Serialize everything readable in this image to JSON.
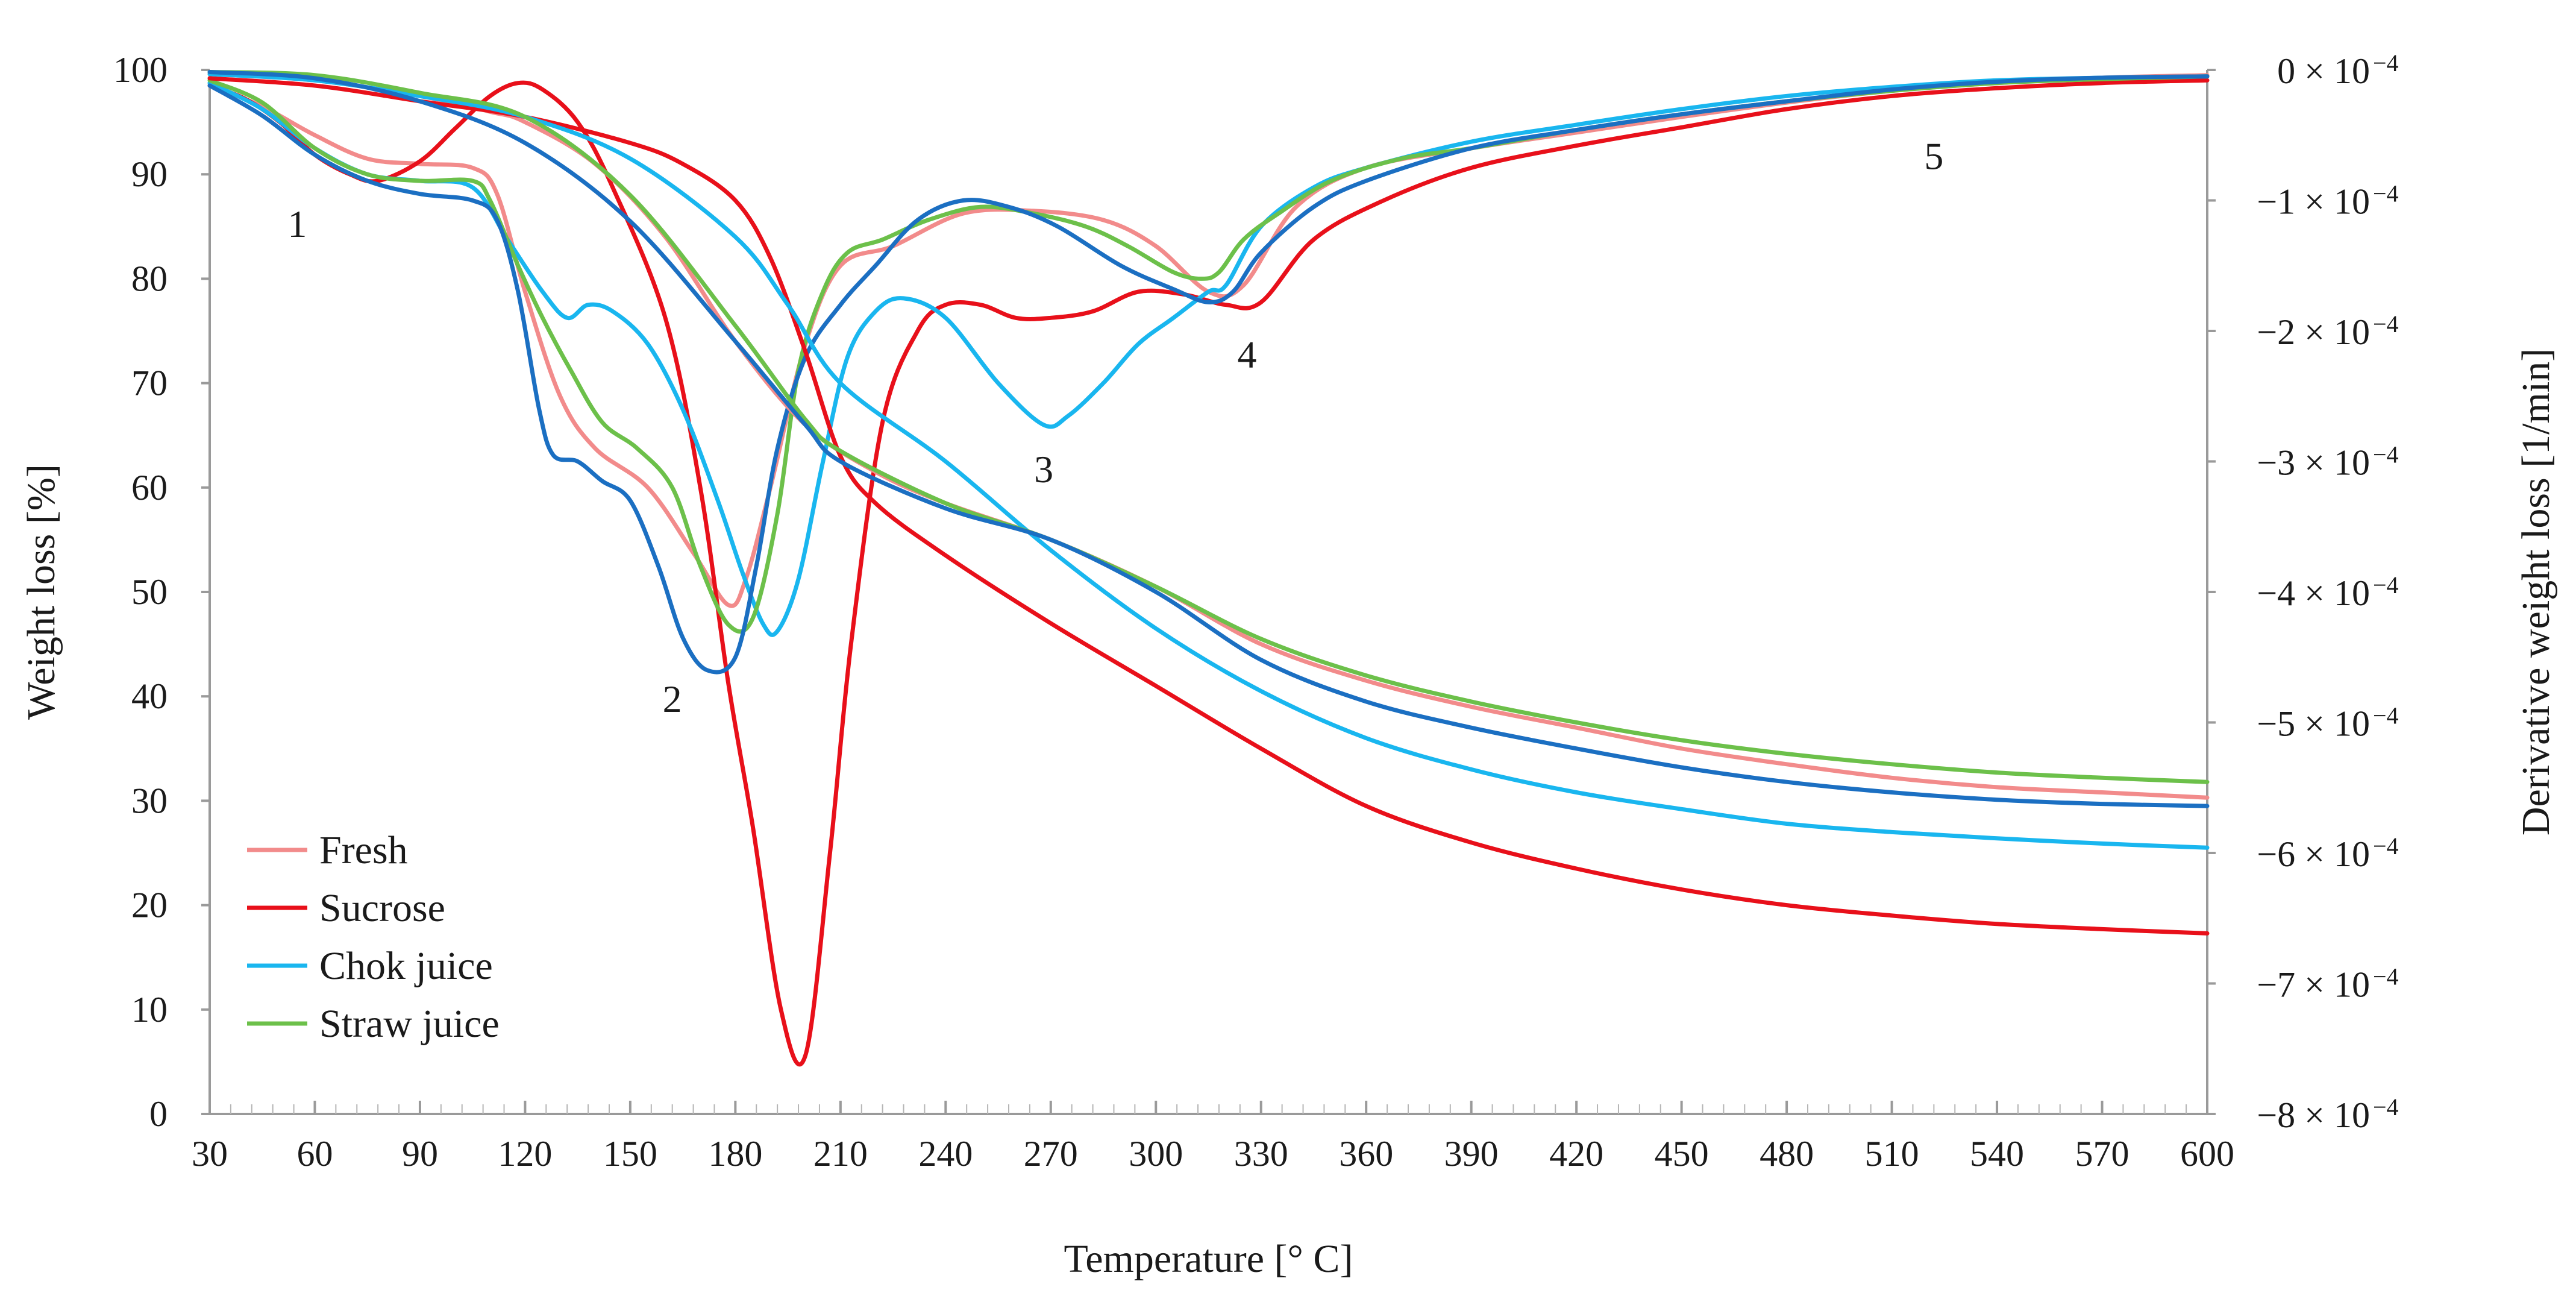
{
  "chart_data": {
    "type": "line",
    "title": "",
    "xlabel": "Temperature [° C]",
    "ylabel_left": "Weight loss [%]",
    "ylabel_right": "Derivative weight loss [1/min]",
    "xlim": [
      30,
      600
    ],
    "ylim_left": [
      0,
      100
    ],
    "ylim_right": [
      -0.0008,
      0
    ],
    "grid": false,
    "legend_position": "bottom-left",
    "x_ticks": [
      30,
      60,
      90,
      120,
      150,
      180,
      210,
      240,
      270,
      300,
      330,
      360,
      390,
      420,
      450,
      480,
      510,
      540,
      570,
      600
    ],
    "y_left_ticks": [
      0,
      10,
      20,
      30,
      40,
      50,
      60,
      70,
      80,
      90,
      100
    ],
    "y_right_ticks": [
      {
        "value": 0,
        "mantissa": "0",
        "text": "0 × 10",
        "exp": "−4"
      },
      {
        "value": -0.0001,
        "mantissa": "−1",
        "text": "−1 × 10",
        "exp": "−4"
      },
      {
        "value": -0.0002,
        "mantissa": "−2",
        "text": "−2 × 10",
        "exp": "−4"
      },
      {
        "value": -0.0003,
        "mantissa": "−3",
        "text": "−3 × 10",
        "exp": "−4"
      },
      {
        "value": -0.0004,
        "mantissa": "−4",
        "text": "−4 × 10",
        "exp": "−4"
      },
      {
        "value": -0.0005,
        "mantissa": "−5",
        "text": "−5 × 10",
        "exp": "−4"
      },
      {
        "value": -0.0006,
        "mantissa": "−6",
        "text": "−6 × 10",
        "exp": "−4"
      },
      {
        "value": -0.0007,
        "mantissa": "−7",
        "text": "−7 × 10",
        "exp": "−4"
      },
      {
        "value": -0.0008,
        "mantissa": "−8",
        "text": "−8 × 10",
        "exp": "−4"
      }
    ],
    "legend": [
      {
        "name": "Fresh",
        "color": "#f28b8b"
      },
      {
        "name": "Sucrose",
        "color": "#e8101a"
      },
      {
        "name": "Chok juice",
        "color": "#19b6ef"
      },
      {
        "name": "Straw juice",
        "color": "#6cc04a"
      }
    ],
    "annotations": [
      {
        "text": "1",
        "x": 55,
        "y": 84
      },
      {
        "text": "2",
        "x": 162,
        "y": 38.5
      },
      {
        "text": "3",
        "x": 268,
        "y": 60.5
      },
      {
        "text": "4",
        "x": 326,
        "y": 71.5
      },
      {
        "text": "5",
        "x": 522,
        "y": 90.5
      }
    ],
    "series": [
      {
        "name": "Fresh TG",
        "kind": "weight",
        "axis": "left",
        "color": "#f28b8b",
        "x": [
          30,
          60,
          90,
          110,
          120,
          140,
          160,
          180,
          200,
          220,
          240,
          270,
          300,
          330,
          360,
          390,
          420,
          450,
          480,
          510,
          540,
          570,
          600
        ],
        "y": [
          99.6,
          99,
          97.5,
          96,
          95,
          91,
          84,
          74,
          66,
          61.5,
          58.5,
          55,
          50.5,
          45,
          41.5,
          39,
          37,
          35,
          33.5,
          32.2,
          31.3,
          30.8,
          30.3
        ]
      },
      {
        "name": "Sucrose TG",
        "kind": "weight",
        "axis": "left",
        "color": "#e8101a",
        "x": [
          30,
          60,
          90,
          120,
          150,
          165,
          180,
          190,
          200,
          210,
          220,
          240,
          270,
          300,
          330,
          360,
          390,
          420,
          450,
          480,
          510,
          540,
          570,
          600
        ],
        "y": [
          99.2,
          98.5,
          97,
          95.5,
          93,
          91,
          87.5,
          82,
          73,
          63,
          58.5,
          53.5,
          47,
          41,
          35,
          29.5,
          26,
          23.5,
          21.5,
          20,
          19,
          18.2,
          17.7,
          17.3
        ]
      },
      {
        "name": "Chok juice TG",
        "kind": "weight",
        "axis": "left",
        "color": "#19b6ef",
        "x": [
          30,
          60,
          90,
          120,
          150,
          180,
          195,
          210,
          240,
          270,
          300,
          330,
          360,
          390,
          420,
          450,
          480,
          510,
          540,
          570,
          600
        ],
        "y": [
          99.6,
          99,
          97.5,
          95.5,
          91.5,
          84,
          77.5,
          70,
          62.5,
          54,
          46.5,
          40.5,
          36,
          33,
          30.8,
          29.2,
          27.8,
          27,
          26.4,
          25.9,
          25.5
        ]
      },
      {
        "name": "Straw juice TG",
        "kind": "weight",
        "axis": "left",
        "color": "#6cc04a",
        "x": [
          30,
          60,
          90,
          120,
          150,
          180,
          200,
          210,
          240,
          270,
          300,
          330,
          360,
          390,
          420,
          450,
          480,
          510,
          540,
          570,
          600
        ],
        "y": [
          99.8,
          99.5,
          97.8,
          95.5,
          88,
          75.5,
          66.5,
          63.5,
          58.5,
          55,
          50.5,
          45.5,
          42,
          39.5,
          37.5,
          35.8,
          34.5,
          33.5,
          32.7,
          32.2,
          31.8
        ]
      },
      {
        "name": "Fresh TG (blue)",
        "kind": "weight",
        "axis": "left",
        "color": "#1b6fc2",
        "x": [
          30,
          60,
          90,
          120,
          150,
          180,
          200,
          210,
          240,
          270,
          300,
          330,
          360,
          390,
          420,
          450,
          480,
          510,
          540,
          570,
          600
        ],
        "y": [
          99.8,
          99.2,
          97,
          93,
          85.5,
          74,
          66,
          62.5,
          58,
          55,
          50,
          43.5,
          39.5,
          37,
          35,
          33.2,
          31.8,
          30.8,
          30.1,
          29.7,
          29.5
        ]
      },
      {
        "name": "Fresh DTG",
        "kind": "derivative",
        "axis": "right",
        "color": "#f28b8b",
        "x": [
          30,
          45,
          60,
          75,
          90,
          105,
          112,
          120,
          130,
          140,
          155,
          168,
          178,
          183,
          190,
          200,
          210,
          225,
          245,
          265,
          285,
          300,
          315,
          325,
          340,
          360,
          390,
          420,
          450,
          480,
          510,
          540,
          570,
          600
        ],
        "y": [
          -1.2e-05,
          -2.8e-05,
          -5e-05,
          -6.8e-05,
          -7.2e-05,
          -7.5e-05,
          -9.5e-05,
          -0.00017,
          -0.00025,
          -0.00029,
          -0.00032,
          -0.00037,
          -0.00041,
          -0.00039,
          -0.00032,
          -0.00021,
          -0.00015,
          -0.000135,
          -0.00011,
          -0.000108,
          -0.000115,
          -0.000135,
          -0.00017,
          -0.000165,
          -0.000105,
          -7.5e-05,
          -6e-05,
          -4.8e-05,
          -3.6e-05,
          -2.5e-05,
          -1.6e-05,
          -1e-05,
          -6e-06,
          -4e-06
        ]
      },
      {
        "name": "Sucrose DTG",
        "kind": "derivative",
        "axis": "right",
        "color": "#e8101a",
        "x": [
          30,
          40,
          50,
          60,
          70,
          78,
          90,
          100,
          110,
          118,
          125,
          135,
          145,
          160,
          170,
          178,
          185,
          193,
          200,
          207,
          213,
          222,
          232,
          240,
          250,
          260,
          270,
          282,
          295,
          308,
          320,
          330,
          345,
          365,
          390,
          420,
          450,
          480,
          510,
          540,
          570,
          600
        ],
        "y": [
          -1.2e-05,
          -2.2e-05,
          -4e-05,
          -6.5e-05,
          -8e-05,
          -8.5e-05,
          -7e-05,
          -4.5e-05,
          -2e-05,
          -1e-05,
          -1.5e-05,
          -4e-05,
          -9e-05,
          -0.00019,
          -0.00032,
          -0.00047,
          -0.00058,
          -0.00072,
          -0.000755,
          -0.0006,
          -0.00044,
          -0.00027,
          -0.0002,
          -0.00018,
          -0.00018,
          -0.00019,
          -0.00019,
          -0.000185,
          -0.00017,
          -0.000172,
          -0.00018,
          -0.000178,
          -0.00013,
          -0.0001,
          -7.5e-05,
          -5.8e-05,
          -4.4e-05,
          -3e-05,
          -2e-05,
          -1.4e-05,
          -1e-05,
          -8e-06
        ]
      },
      {
        "name": "Chok juice DTG",
        "kind": "derivative",
        "axis": "right",
        "color": "#19b6ef",
        "x": [
          30,
          45,
          60,
          75,
          90,
          105,
          115,
          125,
          132,
          138,
          145,
          155,
          165,
          175,
          182,
          188,
          192,
          198,
          205,
          212,
          220,
          228,
          240,
          255,
          268,
          275,
          285,
          295,
          305,
          315,
          320,
          330,
          345,
          360,
          390,
          420,
          450,
          480,
          510,
          540,
          570,
          600
        ],
        "y": [
          -1e-05,
          -3e-05,
          -6e-05,
          -8e-05,
          -8.5e-05,
          -9e-05,
          -0.00013,
          -0.00017,
          -0.00019,
          -0.00018,
          -0.000185,
          -0.00021,
          -0.00026,
          -0.00033,
          -0.000385,
          -0.000425,
          -0.00043,
          -0.00039,
          -0.0003,
          -0.00022,
          -0.000185,
          -0.000175,
          -0.00019,
          -0.00024,
          -0.000272,
          -0.000265,
          -0.00024,
          -0.00021,
          -0.00019,
          -0.00017,
          -0.000165,
          -0.00012,
          -9e-05,
          -7.5e-05,
          -5.5e-05,
          -4.2e-05,
          -3e-05,
          -2e-05,
          -1.3e-05,
          -8e-06,
          -6e-06,
          -5e-06
        ]
      },
      {
        "name": "Straw juice DTG",
        "kind": "derivative",
        "axis": "right",
        "color": "#6cc04a",
        "x": [
          30,
          45,
          60,
          75,
          90,
          105,
          110,
          118,
          125,
          133,
          142,
          152,
          162,
          170,
          178,
          185,
          192,
          198,
          205,
          212,
          222,
          235,
          250,
          265,
          280,
          292,
          305,
          313,
          318,
          325,
          335,
          350,
          370,
          390,
          420,
          450,
          480,
          510,
          540,
          570,
          600
        ],
        "y": [
          -8e-06,
          -2.5e-05,
          -6e-05,
          -8e-05,
          -8.5e-05,
          -8.5e-05,
          -0.0001,
          -0.00015,
          -0.00019,
          -0.00023,
          -0.00027,
          -0.00029,
          -0.00032,
          -0.00038,
          -0.000425,
          -0.00042,
          -0.00034,
          -0.00023,
          -0.00017,
          -0.00014,
          -0.00013,
          -0.000115,
          -0.000105,
          -0.00011,
          -0.00012,
          -0.000135,
          -0.000155,
          -0.00016,
          -0.000155,
          -0.00013,
          -0.00011,
          -8.5e-05,
          -6.8e-05,
          -6e-05,
          -4.6e-05,
          -3.4e-05,
          -2.4e-05,
          -1.6e-05,
          -1e-05,
          -7e-06,
          -5e-06
        ]
      },
      {
        "name": "Fresh DTG (blue)",
        "kind": "derivative",
        "axis": "right",
        "color": "#1b6fc2",
        "x": [
          30,
          45,
          60,
          75,
          90,
          105,
          112,
          118,
          124,
          128,
          135,
          142,
          150,
          158,
          165,
          172,
          180,
          186,
          192,
          200,
          210,
          220,
          232,
          245,
          258,
          272,
          290,
          305,
          315,
          322,
          330,
          345,
          360,
          390,
          420,
          450,
          480,
          510,
          540,
          570,
          600
        ],
        "y": [
          -1.2e-05,
          -3.5e-05,
          -6.5e-05,
          -8.5e-05,
          -9.5e-05,
          -0.0001,
          -0.000115,
          -0.00017,
          -0.00026,
          -0.000295,
          -0.0003,
          -0.000315,
          -0.00033,
          -0.00038,
          -0.000435,
          -0.00046,
          -0.00045,
          -0.00038,
          -0.00029,
          -0.00022,
          -0.00018,
          -0.00015,
          -0.000115,
          -0.0001,
          -0.000105,
          -0.00012,
          -0.00015,
          -0.000168,
          -0.000178,
          -0.00017,
          -0.00014,
          -0.000105,
          -8.5e-05,
          -6e-05,
          -4.6e-05,
          -3.4e-05,
          -2.4e-05,
          -1.5e-05,
          -9e-06,
          -6e-06,
          -5e-06
        ]
      }
    ]
  }
}
